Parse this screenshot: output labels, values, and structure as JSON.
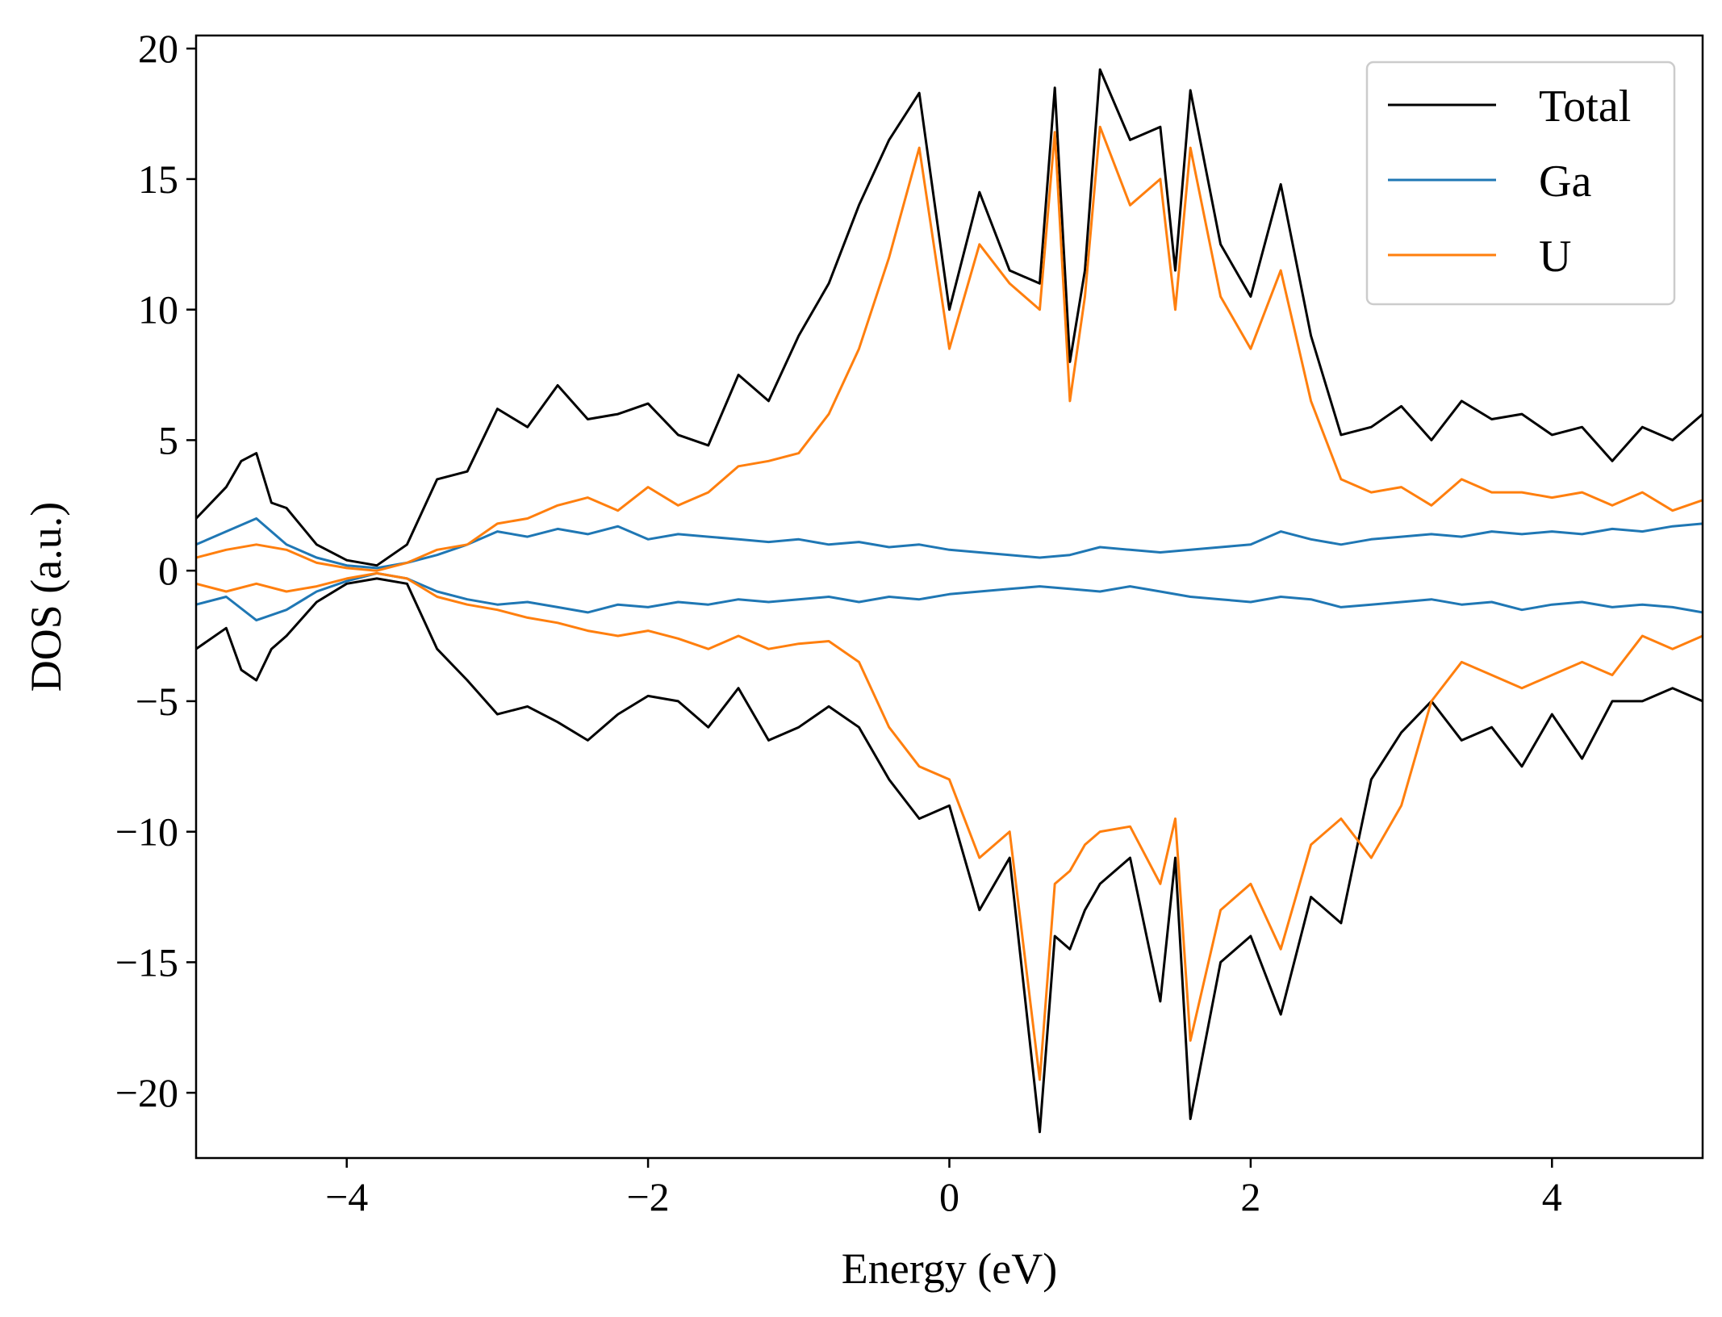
{
  "chart_data": {
    "type": "line",
    "title": "",
    "xlabel": "Energy (eV)",
    "ylabel": "DOS (a.u.)",
    "xlim": [
      -5,
      5
    ],
    "ylim": [
      -22.5,
      20.5
    ],
    "x_ticks": [
      -4,
      -2,
      0,
      2,
      4
    ],
    "x_tick_labels": [
      "−4",
      "−2",
      "0",
      "2",
      "4"
    ],
    "y_ticks": [
      20,
      15,
      10,
      5,
      0,
      -5,
      -10,
      -15,
      -20
    ],
    "y_tick_labels": [
      "20",
      "15",
      "10",
      "5",
      "0",
      "−5",
      "−10",
      "−15",
      "−20"
    ],
    "grid": false,
    "legend_position": "top-right",
    "series": [
      {
        "name": "Total",
        "color": "#000000",
        "x": [
          -5.0,
          -4.8,
          -4.7,
          -4.6,
          -4.5,
          -4.4,
          -4.2,
          -4.0,
          -3.8,
          -3.6,
          -3.4,
          -3.2,
          -3.0,
          -2.8,
          -2.6,
          -2.4,
          -2.2,
          -2.0,
          -1.8,
          -1.6,
          -1.4,
          -1.2,
          -1.0,
          -0.8,
          -0.6,
          -0.4,
          -0.2,
          0.0,
          0.2,
          0.4,
          0.6,
          0.7,
          0.8,
          0.9,
          1.0,
          1.2,
          1.4,
          1.5,
          1.6,
          1.8,
          2.0,
          2.2,
          2.4,
          2.6,
          2.8,
          3.0,
          3.2,
          3.4,
          3.6,
          3.8,
          4.0,
          4.2,
          4.4,
          4.6,
          4.8,
          5.0
        ],
        "spin_up": [
          2.0,
          3.2,
          4.2,
          4.5,
          2.6,
          2.4,
          1.0,
          0.4,
          0.2,
          1.0,
          3.5,
          3.8,
          6.2,
          5.5,
          7.1,
          5.8,
          6.0,
          6.4,
          5.2,
          4.8,
          7.5,
          6.5,
          9.0,
          11.0,
          14.0,
          16.5,
          18.3,
          10.0,
          14.5,
          11.5,
          11.0,
          18.5,
          8.0,
          11.5,
          19.2,
          16.5,
          17.0,
          11.5,
          18.4,
          12.5,
          10.5,
          14.8,
          9.0,
          5.2,
          5.5,
          6.3,
          5.0,
          6.5,
          5.8,
          6.0,
          5.2,
          5.5,
          4.2,
          5.5,
          5.0,
          6.0
        ],
        "spin_down": [
          -3.0,
          -2.2,
          -3.8,
          -4.2,
          -3.0,
          -2.5,
          -1.2,
          -0.5,
          -0.3,
          -0.5,
          -3.0,
          -4.2,
          -5.5,
          -5.2,
          -5.8,
          -6.5,
          -5.5,
          -4.8,
          -5.0,
          -6.0,
          -4.5,
          -6.5,
          -6.0,
          -5.2,
          -6.0,
          -8.0,
          -9.5,
          -9.0,
          -13.0,
          -11.0,
          -21.5,
          -14.0,
          -14.5,
          -13.0,
          -12.0,
          -11.0,
          -16.5,
          -11.0,
          -21.0,
          -15.0,
          -14.0,
          -17.0,
          -12.5,
          -13.5,
          -8.0,
          -6.2,
          -5.0,
          -6.5,
          -6.0,
          -7.5,
          -5.5,
          -7.2,
          -5.0,
          -5.0,
          -4.5,
          -5.0
        ]
      },
      {
        "name": "Ga",
        "color": "#1f77b4",
        "x": [
          -5.0,
          -4.8,
          -4.6,
          -4.4,
          -4.2,
          -4.0,
          -3.8,
          -3.6,
          -3.4,
          -3.2,
          -3.0,
          -2.8,
          -2.6,
          -2.4,
          -2.2,
          -2.0,
          -1.8,
          -1.6,
          -1.4,
          -1.2,
          -1.0,
          -0.8,
          -0.6,
          -0.4,
          -0.2,
          0.0,
          0.2,
          0.4,
          0.6,
          0.8,
          1.0,
          1.2,
          1.4,
          1.6,
          1.8,
          2.0,
          2.2,
          2.4,
          2.6,
          2.8,
          3.0,
          3.2,
          3.4,
          3.6,
          3.8,
          4.0,
          4.2,
          4.4,
          4.6,
          4.8,
          5.0
        ],
        "spin_up": [
          1.0,
          1.5,
          2.0,
          1.0,
          0.5,
          0.2,
          0.1,
          0.3,
          0.6,
          1.0,
          1.5,
          1.3,
          1.6,
          1.4,
          1.7,
          1.2,
          1.4,
          1.3,
          1.2,
          1.1,
          1.2,
          1.0,
          1.1,
          0.9,
          1.0,
          0.8,
          0.7,
          0.6,
          0.5,
          0.6,
          0.9,
          0.8,
          0.7,
          0.8,
          0.9,
          1.0,
          1.5,
          1.2,
          1.0,
          1.2,
          1.3,
          1.4,
          1.3,
          1.5,
          1.4,
          1.5,
          1.4,
          1.6,
          1.5,
          1.7,
          1.8
        ],
        "spin_down": [
          -1.3,
          -1.0,
          -1.9,
          -1.5,
          -0.8,
          -0.4,
          -0.1,
          -0.3,
          -0.8,
          -1.1,
          -1.3,
          -1.2,
          -1.4,
          -1.6,
          -1.3,
          -1.4,
          -1.2,
          -1.3,
          -1.1,
          -1.2,
          -1.1,
          -1.0,
          -1.2,
          -1.0,
          -1.1,
          -0.9,
          -0.8,
          -0.7,
          -0.6,
          -0.7,
          -0.8,
          -0.6,
          -0.8,
          -1.0,
          -1.1,
          -1.2,
          -1.0,
          -1.1,
          -1.4,
          -1.3,
          -1.2,
          -1.1,
          -1.3,
          -1.2,
          -1.5,
          -1.3,
          -1.2,
          -1.4,
          -1.3,
          -1.4,
          -1.6
        ]
      },
      {
        "name": "U",
        "color": "#ff7f0e",
        "x": [
          -5.0,
          -4.8,
          -4.6,
          -4.4,
          -4.2,
          -4.0,
          -3.8,
          -3.6,
          -3.4,
          -3.2,
          -3.0,
          -2.8,
          -2.6,
          -2.4,
          -2.2,
          -2.0,
          -1.8,
          -1.6,
          -1.4,
          -1.2,
          -1.0,
          -0.8,
          -0.6,
          -0.4,
          -0.2,
          0.0,
          0.2,
          0.4,
          0.6,
          0.7,
          0.8,
          0.9,
          1.0,
          1.2,
          1.4,
          1.5,
          1.6,
          1.8,
          2.0,
          2.2,
          2.4,
          2.6,
          2.8,
          3.0,
          3.2,
          3.4,
          3.6,
          3.8,
          4.0,
          4.2,
          4.4,
          4.6,
          4.8,
          5.0
        ],
        "spin_up": [
          0.5,
          0.8,
          1.0,
          0.8,
          0.3,
          0.1,
          0.0,
          0.3,
          0.8,
          1.0,
          1.8,
          2.0,
          2.5,
          2.8,
          2.3,
          3.2,
          2.5,
          3.0,
          4.0,
          4.2,
          4.5,
          6.0,
          8.5,
          12.0,
          16.2,
          8.5,
          12.5,
          11.0,
          10.0,
          16.8,
          6.5,
          10.5,
          17.0,
          14.0,
          15.0,
          10.0,
          16.2,
          10.5,
          8.5,
          11.5,
          6.5,
          3.5,
          3.0,
          3.2,
          2.5,
          3.5,
          3.0,
          3.0,
          2.8,
          3.0,
          2.5,
          3.0,
          2.3,
          2.7
        ],
        "spin_down": [
          -0.5,
          -0.8,
          -0.5,
          -0.8,
          -0.6,
          -0.3,
          -0.1,
          -0.3,
          -1.0,
          -1.3,
          -1.5,
          -1.8,
          -2.0,
          -2.3,
          -2.5,
          -2.3,
          -2.6,
          -3.0,
          -2.5,
          -3.0,
          -2.8,
          -2.7,
          -3.5,
          -6.0,
          -7.5,
          -8.0,
          -11.0,
          -10.0,
          -19.5,
          -12.0,
          -11.5,
          -10.5,
          -10.0,
          -9.8,
          -12.0,
          -9.5,
          -18.0,
          -13.0,
          -12.0,
          -14.5,
          -10.5,
          -9.5,
          -11.0,
          -9.0,
          -5.0,
          -3.5,
          -4.0,
          -4.5,
          -4.0,
          -3.5,
          -4.0,
          -2.5,
          -3.0,
          -2.5
        ]
      }
    ]
  }
}
